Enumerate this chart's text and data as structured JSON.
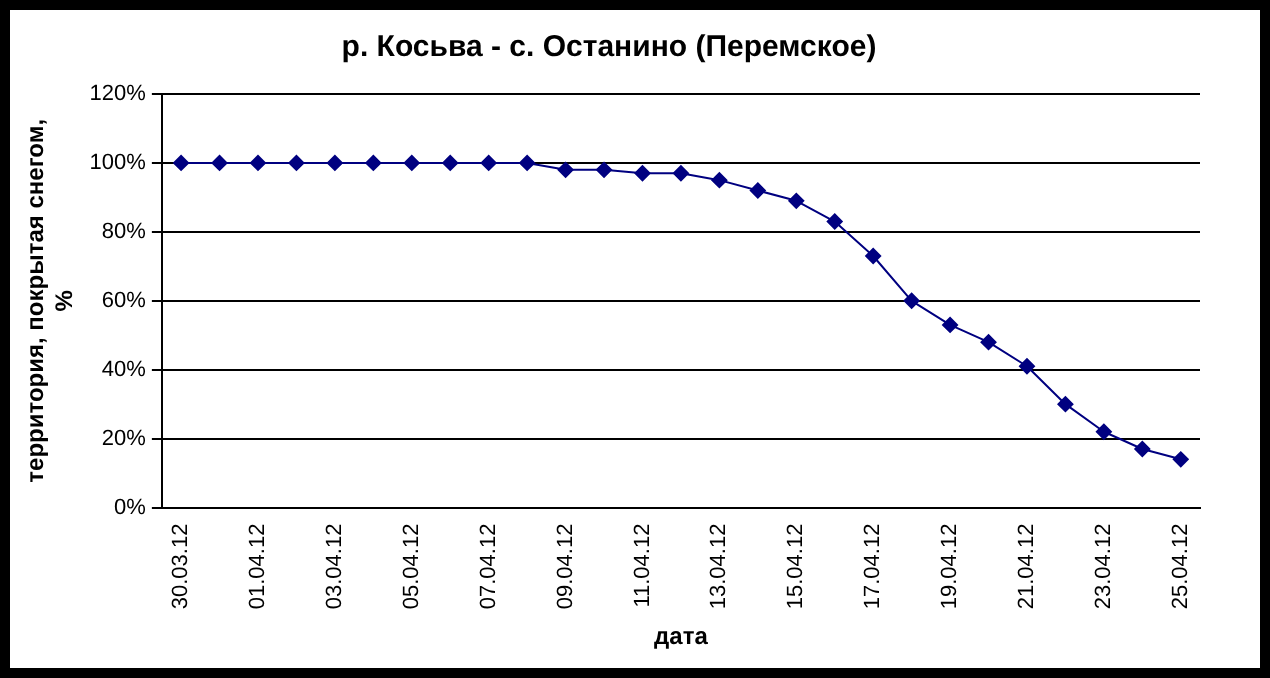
{
  "chart_data": {
    "type": "line",
    "title": "р. Косьва - с. Останино (Перемское)",
    "xlabel": "дата",
    "ylabel": "территория, покрытая снегом, %",
    "categories": [
      "30.03.12",
      null,
      "01.04.12",
      null,
      "03.04.12",
      null,
      "05.04.12",
      null,
      "07.04.12",
      null,
      "09.04.12",
      null,
      "11.04.12",
      null,
      "13.04.12",
      null,
      "15.04.12",
      null,
      "17.04.12",
      null,
      "19.04.12",
      null,
      "21.04.12",
      null,
      "23.04.12",
      null,
      "25.04.12"
    ],
    "series": [
      {
        "color": "#000080",
        "values": [
          100,
          100,
          100,
          100,
          100,
          100,
          100,
          100,
          100,
          100,
          98,
          98,
          97,
          97,
          95,
          92,
          89,
          83,
          73,
          60,
          53,
          48,
          41,
          30,
          22,
          17,
          14
        ]
      }
    ],
    "ylim": [
      0,
      120
    ],
    "yticks": [
      {
        "value": 0,
        "label": "0%"
      },
      {
        "value": 20,
        "label": "20%"
      },
      {
        "value": 40,
        "label": "40%"
      },
      {
        "value": 60,
        "label": "60%"
      },
      {
        "value": 80,
        "label": "80%"
      },
      {
        "value": 100,
        "label": "100%"
      },
      {
        "value": 120,
        "label": "120%"
      }
    ],
    "grid": "y",
    "legend": false,
    "marker": "diamond",
    "line_style": "solid"
  }
}
